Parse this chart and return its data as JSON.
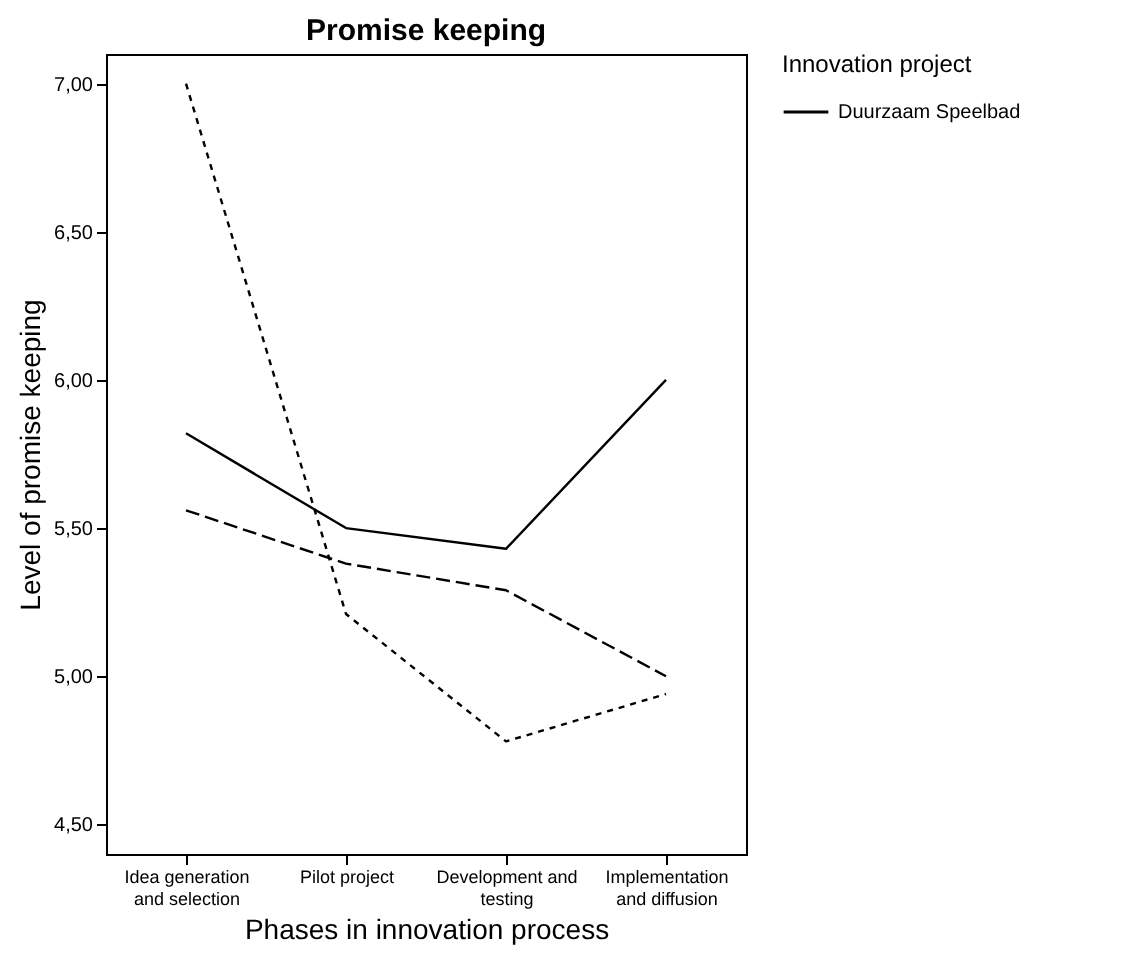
{
  "chart_data": {
    "type": "line",
    "title": "Promise keeping",
    "xlabel": "Phases in innovation process",
    "ylabel": "Level of promise keeping",
    "legend_title": "Innovation project",
    "legend": "top right",
    "grid": false,
    "marker": "none",
    "categories": [
      "Idea generation and selection",
      "Pilot project",
      "Development and testing",
      "Implementation and diffusion"
    ],
    "ylim": [
      4.4,
      7.1
    ],
    "yticks": [
      {
        "value": 4.5,
        "label": "4,50"
      },
      {
        "value": 5,
        "label": "5,00"
      },
      {
        "value": 5.5,
        "label": "5,50"
      },
      {
        "value": 6,
        "label": "6,00"
      },
      {
        "value": 6.5,
        "label": "6,50"
      },
      {
        "value": 7,
        "label": "7,00"
      }
    ],
    "series": [
      {
        "name": "Duurzaam Speelbad",
        "color": "#000000",
        "line_style": "solid",
        "values": [
          5.82,
          5.5,
          5.43,
          6.0
        ]
      },
      {
        "color": "#000000",
        "line_style": "dashed",
        "values": [
          5.56,
          5.38,
          5.29,
          5.0
        ]
      },
      {
        "color": "#000000",
        "line_style": "dotted",
        "values": [
          7.0,
          5.21,
          4.78,
          4.94
        ]
      }
    ]
  }
}
